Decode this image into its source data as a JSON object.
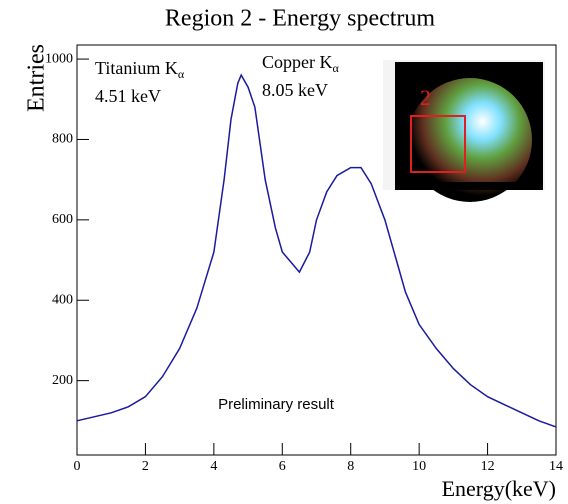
{
  "chart_data": {
    "type": "line",
    "title": "Region 2 - Energy spectrum",
    "x_label": "Energy(keV)",
    "y_label": "Entries",
    "x": [
      0,
      0.5,
      1,
      1.5,
      2,
      2.5,
      3,
      3.5,
      4,
      4.3,
      4.5,
      4.7,
      4.8,
      5.0,
      5.2,
      5.5,
      5.8,
      6.0,
      6.3,
      6.5,
      6.8,
      7.0,
      7.3,
      7.6,
      8.0,
      8.3,
      8.6,
      9.0,
      9.3,
      9.6,
      10,
      10.5,
      11,
      11.5,
      12,
      12.5,
      13,
      13.5,
      14
    ],
    "values": [
      100,
      110,
      120,
      135,
      160,
      210,
      280,
      380,
      520,
      700,
      850,
      940,
      960,
      930,
      880,
      700,
      580,
      520,
      490,
      470,
      520,
      600,
      670,
      710,
      730,
      730,
      690,
      600,
      510,
      420,
      340,
      280,
      230,
      190,
      160,
      140,
      120,
      100,
      85
    ],
    "color": "#1a1aa0",
    "xlim": [
      0,
      14
    ],
    "xticks": [
      0,
      2,
      4,
      6,
      8,
      10,
      12,
      14
    ],
    "ylim": [
      15,
      1035
    ],
    "yticks": [
      200,
      400,
      600,
      800,
      1000
    ],
    "annotations": [
      {
        "text": "Titanium K",
        "subscript": "α",
        "energy": "4.51 keV"
      },
      {
        "text": "Copper K",
        "subscript": "α",
        "energy": "8.05 keV"
      }
    ],
    "note": "Preliminary result",
    "inset_label": "2"
  }
}
